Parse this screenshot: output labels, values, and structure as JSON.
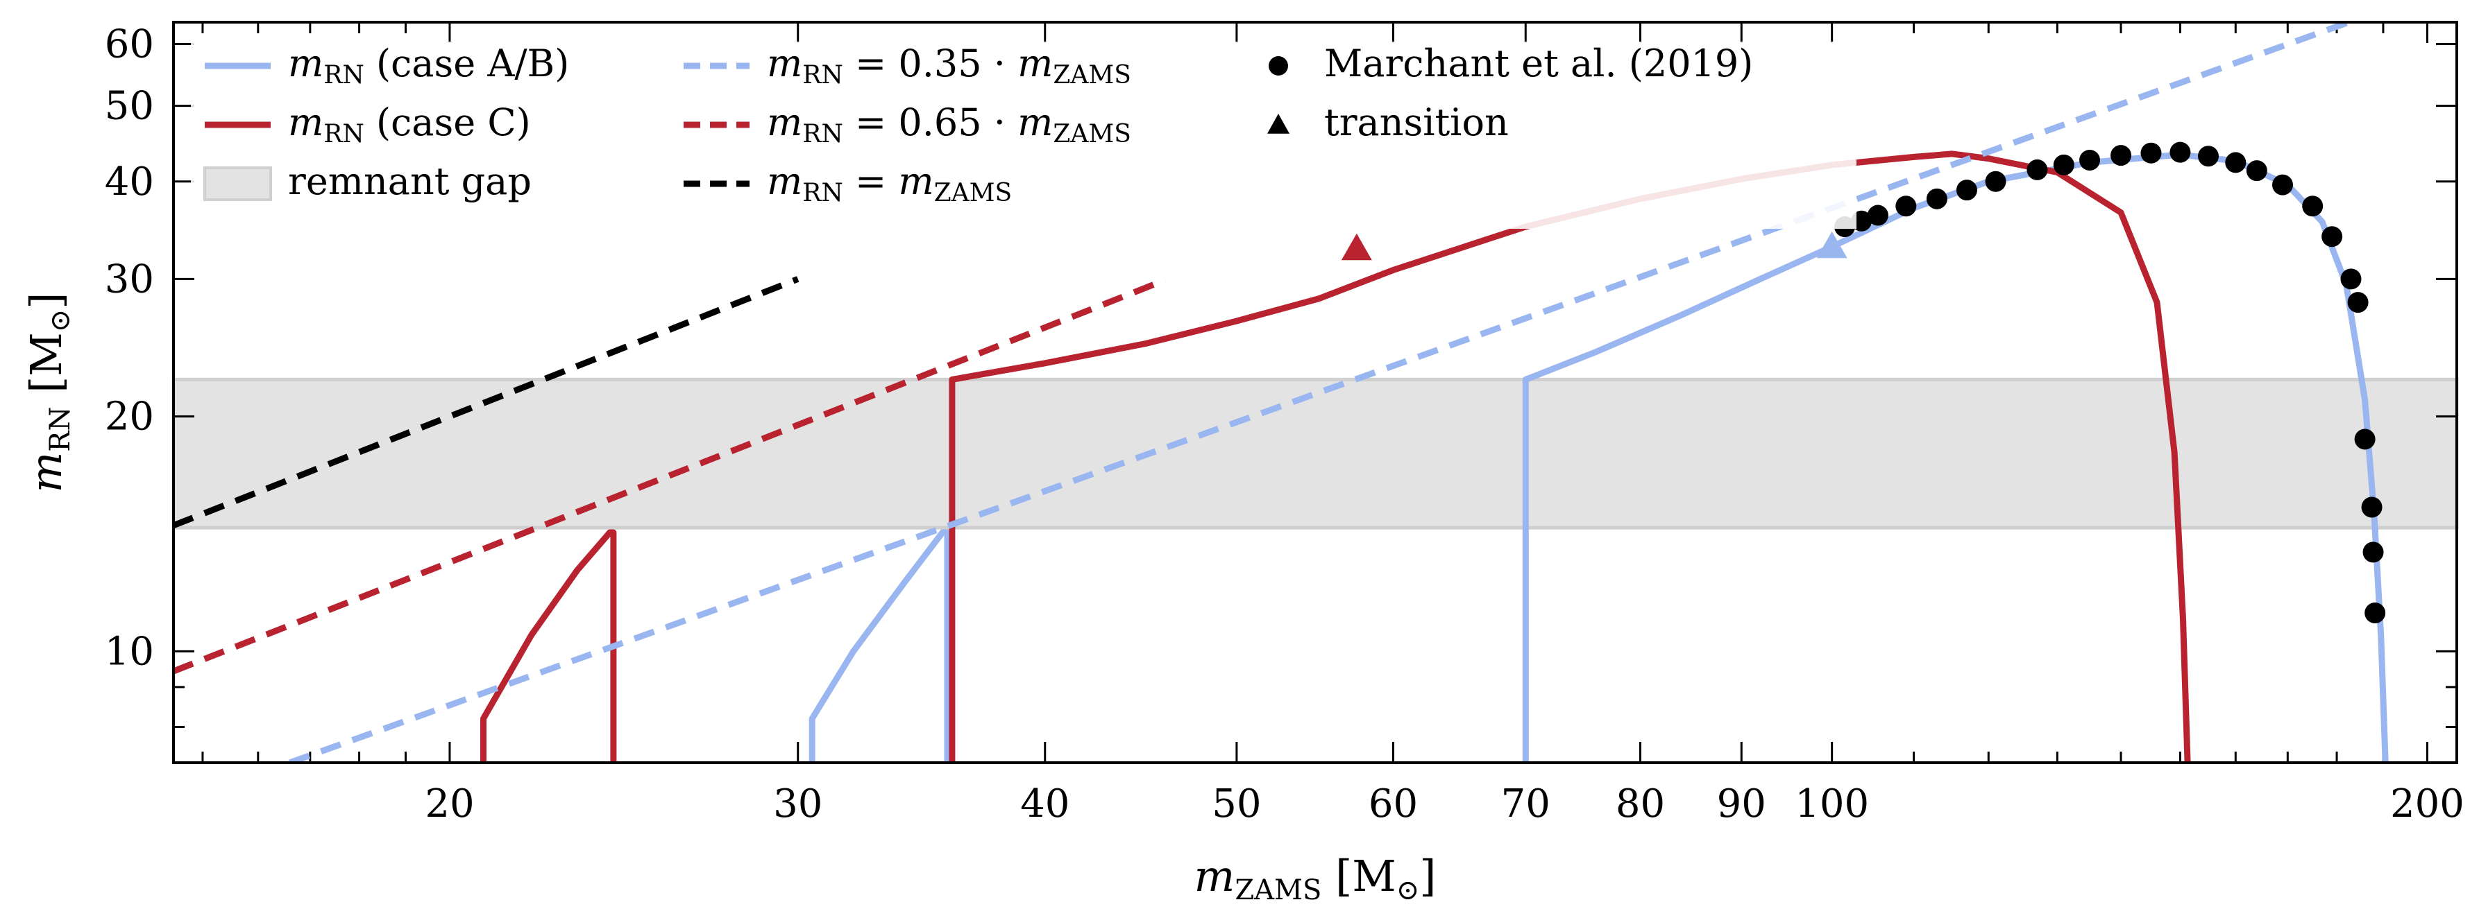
{
  "chart_data": {
    "type": "line",
    "xscale": "log",
    "yscale": "log",
    "xlim": [
      14.5,
      207
    ],
    "ylim": [
      7.2,
      64
    ],
    "xlabel": {
      "var": "m",
      "sub": "ZAMS",
      "unit": "[M",
      "unit_sub": "⊙",
      "unit_close": "]"
    },
    "ylabel": {
      "var": "m",
      "sub": "RN",
      "unit": "[M",
      "unit_sub": "⊙",
      "unit_close": "]"
    },
    "x_ticks": [
      {
        "value": 20,
        "label": "20"
      },
      {
        "value": 30,
        "label": "30"
      },
      {
        "value": 40,
        "label": "40"
      },
      {
        "value": 50,
        "label": "50"
      },
      {
        "value": 60,
        "label": "60"
      },
      {
        "value": 70,
        "label": "70"
      },
      {
        "value": 80,
        "label": "80"
      },
      {
        "value": 90,
        "label": "90"
      },
      {
        "value": 100,
        "label": "100"
      },
      {
        "value": 200,
        "label": "200"
      }
    ],
    "y_ticks": [
      {
        "value": 10,
        "label": "10"
      },
      {
        "value": 20,
        "label": "20"
      },
      {
        "value": 30,
        "label": "30"
      },
      {
        "value": 40,
        "label": "40"
      },
      {
        "value": 50,
        "label": "50"
      },
      {
        "value": 60,
        "label": "60"
      }
    ],
    "remnant_gap": {
      "y0": 14.4,
      "y1": 22.3,
      "color": "#e3e3e3",
      "edge": "#cfcfcf"
    },
    "series": [
      {
        "name": "case A/B",
        "style": "solid",
        "color": "#9ab6f0",
        "segments": [
          [
            [
              30.5,
              7.2
            ],
            [
              30.5,
              8.2
            ],
            [
              32.0,
              10.0
            ],
            [
              34.0,
              12.3
            ],
            [
              35.5,
              14.2
            ],
            [
              35.7,
              14.2
            ],
            [
              35.7,
              7.2
            ]
          ],
          [
            [
              70,
              7.2
            ],
            [
              70,
              22.3
            ],
            [
              76,
              24.2
            ],
            [
              84,
              27.0
            ],
            [
              92,
              30.0
            ],
            [
              100,
              33.0
            ],
            [
              110,
              37.0
            ],
            [
              120,
              40.0
            ],
            [
              135,
              42.3
            ],
            [
              150,
              43.3
            ],
            [
              160,
              42.5
            ],
            [
              170,
              39.6
            ],
            [
              177,
              35.5
            ],
            [
              182,
              29.5
            ],
            [
              186,
              21.0
            ],
            [
              188,
              15.0
            ],
            [
              189.5,
              10.5
            ],
            [
              190.5,
              7.2
            ]
          ]
        ]
      },
      {
        "name": "case C",
        "style": "solid",
        "color": "#b8232f",
        "segments": [
          [
            [
              20.8,
              7.2
            ],
            [
              20.8,
              8.2
            ],
            [
              22.0,
              10.5
            ],
            [
              23.2,
              12.7
            ],
            [
              24.1,
              14.2
            ],
            [
              24.2,
              14.2
            ],
            [
              24.2,
              7.2
            ]
          ],
          [
            [
              35.9,
              7.2
            ],
            [
              35.9,
              22.3
            ],
            [
              40,
              23.4
            ],
            [
              45,
              24.8
            ],
            [
              50,
              26.5
            ],
            [
              55,
              28.3
            ],
            [
              60,
              30.8
            ],
            [
              70,
              35.0
            ],
            [
              80,
              38.0
            ],
            [
              90,
              40.3
            ],
            [
              100,
              42.0
            ],
            [
              110,
              43.0
            ],
            [
              115,
              43.4
            ],
            [
              120,
              42.8
            ],
            [
              130,
              41.1
            ],
            [
              140,
              36.5
            ],
            [
              146,
              28.0
            ],
            [
              149,
              18.0
            ],
            [
              150.5,
              11.0
            ],
            [
              151.3,
              7.2
            ]
          ]
        ]
      },
      {
        "name": "0.35 · ZAMS",
        "style": "dashed",
        "color": "#9ab6f0",
        "line": [
          [
            16.6,
            7.2
          ],
          [
            186,
            65.1
          ]
        ]
      },
      {
        "name": "0.65 · ZAMS",
        "style": "dashed",
        "color": "#b8232f",
        "line": [
          [
            14.5,
            9.43
          ],
          [
            46,
            29.9
          ]
        ]
      },
      {
        "name": "ZAMS",
        "style": "dashed",
        "color": "#000000",
        "line": [
          [
            14.5,
            14.5
          ],
          [
            30,
            30
          ]
        ]
      }
    ],
    "transitions": [
      {
        "x": 57.5,
        "y": 32.8,
        "color": "#b8232f"
      },
      {
        "x": 100,
        "y": 33.0,
        "color": "#9ab6f0"
      }
    ],
    "marchant_points": [
      [
        101.5,
        35.0
      ],
      [
        103.5,
        35.6
      ],
      [
        105.5,
        36.2
      ],
      [
        109,
        37.2
      ],
      [
        113,
        38.0
      ],
      [
        117,
        39.0
      ],
      [
        121,
        40.0
      ],
      [
        127,
        41.4
      ],
      [
        131,
        42.0
      ],
      [
        135,
        42.6
      ],
      [
        140,
        43.2
      ],
      [
        145,
        43.5
      ],
      [
        150,
        43.6
      ],
      [
        155,
        43.1
      ],
      [
        160,
        42.3
      ],
      [
        164,
        41.3
      ],
      [
        169,
        39.6
      ],
      [
        175,
        37.2
      ],
      [
        179,
        34.0
      ],
      [
        183,
        30.0
      ],
      [
        184.5,
        28.0
      ],
      [
        186,
        18.7
      ],
      [
        187.5,
        15.3
      ],
      [
        187.8,
        13.4
      ],
      [
        188.2,
        11.2
      ]
    ],
    "legend": {
      "placement": "top-left",
      "rows": [
        {
          "marker": "line-solid",
          "color": "#9ab6f0",
          "var": "m",
          "sub": "RN",
          "rest": " (case A/B)"
        },
        {
          "marker": "line-solid",
          "color": "#b8232f",
          "var": "m",
          "sub": "RN",
          "rest": " (case C)"
        },
        {
          "marker": "box",
          "color": "#e3e3e3",
          "text": "remnant gap"
        },
        {
          "marker": "line-dashed",
          "color": "#9ab6f0",
          "var": "m",
          "sub": "RN",
          "rest": " = 0.35 · ",
          "var2": "m",
          "sub2": "ZAMS"
        },
        {
          "marker": "line-dashed",
          "color": "#b8232f",
          "var": "m",
          "sub": "RN",
          "rest": " = 0.65 · ",
          "var2": "m",
          "sub2": "ZAMS"
        },
        {
          "marker": "line-dashed",
          "color": "#000000",
          "var": "m",
          "sub": "RN",
          "rest": " = ",
          "var2": "m",
          "sub2": "ZAMS"
        },
        {
          "marker": "circle",
          "color": "#000000",
          "text": "Marchant et al. (2019)"
        },
        {
          "marker": "triangle",
          "color": "#000000",
          "text": "transition"
        }
      ]
    }
  }
}
